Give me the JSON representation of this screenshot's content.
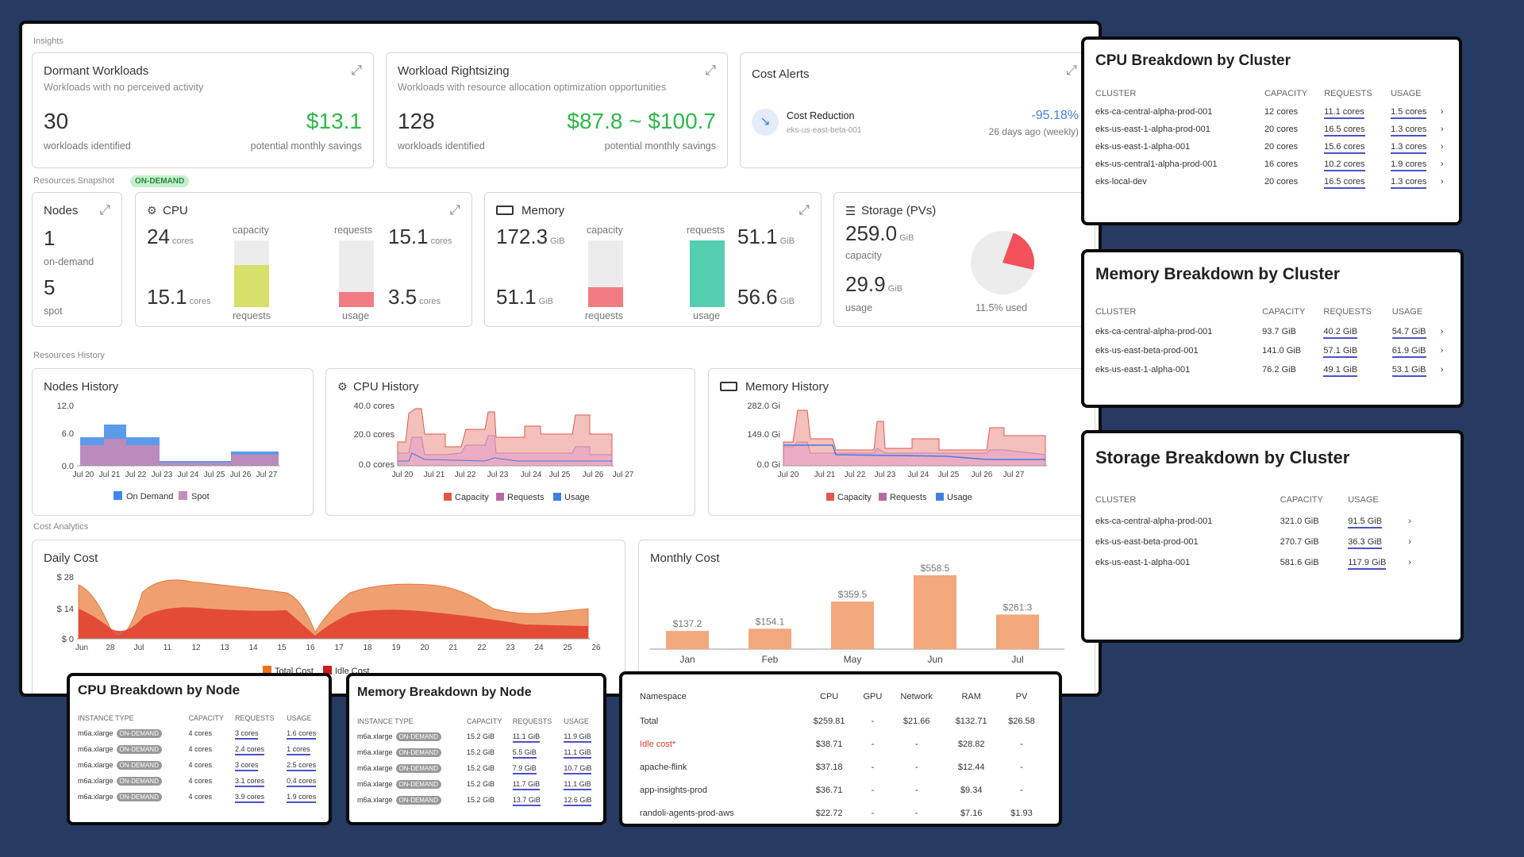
{
  "insights": {
    "label": "Insights",
    "dormant": {
      "title": "Dormant Workloads",
      "subtitle": "Workloads with no perceived activity",
      "count": "30",
      "count_label": "workloads identified",
      "savings": "$13.1",
      "savings_label": "potential monthly savings"
    },
    "rightsizing": {
      "title": "Workload Rightsizing",
      "subtitle": "Workloads with resource allocation optimization opportunities",
      "count": "128",
      "count_label": "workloads identified",
      "savings": "$87.8 ~ $100.7",
      "savings_label": "potential monthly savings"
    },
    "alerts": {
      "title": "Cost Alerts",
      "item_title": "Cost Reduction",
      "item_cluster": "eks-us-east-beta-001",
      "percent": "-95.18%",
      "when": "26 days ago (weekly)"
    }
  },
  "snapshot": {
    "label": "Resources Snapshot",
    "badge": "ON-DEMAND",
    "nodes": {
      "title": "Nodes",
      "ondemand": "1",
      "ondemand_label": "on-demand",
      "spot": "5",
      "spot_label": "spot"
    },
    "cpu": {
      "title": "CPU",
      "cap": "24",
      "cap_unit": "cores",
      "alloc": "15.1",
      "alloc_unit": "cores",
      "cap_label": "capacity",
      "req_label": "requests",
      "requests_top_label": "requests",
      "usage_label": "usage",
      "req": "15.1",
      "req_unit": "cores",
      "use": "3.5",
      "use_unit": "cores",
      "req_fraction": 0.63,
      "use_fraction": 0.23
    },
    "memory": {
      "title": "Memory",
      "cap": "172.3",
      "cap_unit": "GiB",
      "alloc": "51.1",
      "alloc_unit": "GiB",
      "cap_label": "capacity",
      "req_label": "requests",
      "requests_top_label": "requests",
      "usage_label": "usage",
      "req": "51.1",
      "req_unit": "GiB",
      "use": "56.6",
      "use_unit": "GiB",
      "req_fraction": 0.3,
      "use_fraction": 1.0
    },
    "storage": {
      "title": "Storage (PVs)",
      "cap": "259.0",
      "cap_unit": "GiB",
      "cap_label": "capacity",
      "use": "29.9",
      "use_unit": "GiB",
      "use_label": "usage",
      "used_pct_label": "11.5% used",
      "used_fraction": 0.115
    }
  },
  "history": {
    "label": "Resources History",
    "nodes": {
      "title": "Nodes History",
      "yticks": [
        "12.0",
        "6.0",
        "0.0"
      ],
      "xticks": [
        "Jul 20",
        "Jul 21",
        "Jul 22",
        "Jul 23",
        "Jul 24",
        "Jul 25",
        "Jul 26",
        "Jul 27"
      ],
      "legend": [
        "On Demand",
        "Spot"
      ]
    },
    "cpu": {
      "title": "CPU History",
      "yticks": [
        "40.0 cores",
        "20.0 cores",
        "0.0 cores"
      ],
      "xticks": [
        "Jul 20",
        "Jul 21",
        "Jul 22",
        "Jul 23",
        "Jul 24",
        "Jul 25",
        "Jul 26",
        "Jul 27"
      ],
      "legend": [
        "Capacity",
        "Requests",
        "Usage"
      ]
    },
    "memory": {
      "title": "Memory History",
      "yticks": [
        "282.0 Gi",
        "149.0 Gi",
        "0.0 Gi"
      ],
      "xticks": [
        "Jul 20",
        "Jul 21",
        "Jul 22",
        "Jul 23",
        "Jul 24",
        "Jul 25",
        "Jul 26",
        "Jul 27"
      ],
      "legend": [
        "Capacity",
        "Requests",
        "Usage"
      ]
    }
  },
  "cost": {
    "label": "Cost Analytics",
    "daily": {
      "title": "Daily Cost",
      "yticks": [
        "$ 28",
        "$ 14",
        "$ 0"
      ],
      "xticks": [
        "Jun",
        "28",
        "Jul",
        "11",
        "12",
        "13",
        "14",
        "15",
        "16",
        "17",
        "18",
        "19",
        "20",
        "21",
        "22",
        "23",
        "24",
        "25",
        "26"
      ],
      "legend": [
        "Total Cost",
        "Idle Cost"
      ]
    },
    "monthly": {
      "title": "Monthly Cost",
      "bars": [
        {
          "label": "Jan",
          "value": 137.2,
          "text": "$137.2"
        },
        {
          "label": "Feb",
          "value": 154.1,
          "text": "$154.1"
        },
        {
          "label": "May",
          "value": 359.5,
          "text": "$359.5"
        },
        {
          "label": "Jun",
          "value": 558.5,
          "text": "$558.5"
        },
        {
          "label": "Jul",
          "value": 261.3,
          "text": "$261.3"
        }
      ]
    }
  },
  "cpu_cluster": {
    "title": "CPU Breakdown by Cluster",
    "headers": [
      "CLUSTER",
      "CAPACITY",
      "REQUESTS",
      "USAGE"
    ],
    "rows": [
      [
        "eks-ca-central-alpha-prod-001",
        "12 cores",
        "11.1 cores",
        "1.5 cores"
      ],
      [
        "eks-us-east-1-alpha-prod-001",
        "20 cores",
        "16.5 cores",
        "1.3 cores"
      ],
      [
        "eks-us-east-1-alpha-001",
        "20 cores",
        "15.6 cores",
        "1.3 cores"
      ],
      [
        "eks-us-central1-alpha-prod-001",
        "16 cores",
        "10.2 cores",
        "1.9 cores"
      ],
      [
        "eks-local-dev",
        "20 cores",
        "16.5 cores",
        "1.3 cores"
      ]
    ]
  },
  "mem_cluster": {
    "title": "Memory Breakdown by Cluster",
    "headers": [
      "CLUSTER",
      "CAPACITY",
      "REQUESTS",
      "USAGE"
    ],
    "rows": [
      [
        "eks-ca-central-alpha-prod-001",
        "93.7 GiB",
        "40.2 GiB",
        "54.7 GiB"
      ],
      [
        "eks-us-east-beta-prod-001",
        "141.0 GiB",
        "57.1 GiB",
        "61.9 GiB"
      ],
      [
        "eks-us-east-1-alpha-001",
        "76.2 GiB",
        "49.1 GiB",
        "53.1 GiB"
      ]
    ]
  },
  "sto_cluster": {
    "title": "Storage Breakdown by Cluster",
    "headers": [
      "CLUSTER",
      "CAPACITY",
      "USAGE"
    ],
    "rows": [
      [
        "eks-ca-central-alpha-prod-001",
        "321.0 GiB",
        "91.5 GiB"
      ],
      [
        "eks-us-east-beta-prod-001",
        "270.7 GiB",
        "36.3 GiB"
      ],
      [
        "eks-us-east-1-alpha-001",
        "581.6 GiB",
        "117.9 GiB"
      ]
    ]
  },
  "cpu_node": {
    "title": "CPU Breakdown by Node",
    "headers": [
      "INSTANCE TYPE",
      "CAPACITY",
      "REQUESTS",
      "USAGE"
    ],
    "badge": "ON-DEMAND",
    "rows": [
      [
        "m6a.xlarge",
        "4 cores",
        "3 cores",
        "1.6 cores"
      ],
      [
        "m6a.xlarge",
        "4 cores",
        "2.4 cores",
        "1 cores"
      ],
      [
        "m6a.xlarge",
        "4 cores",
        "3 cores",
        "2.5 cores"
      ],
      [
        "m6a.xlarge",
        "4 cores",
        "3.1 cores",
        "0.4 cores"
      ],
      [
        "m6a.xlarge",
        "4 cores",
        "3.9 cores",
        "1.9 cores"
      ]
    ]
  },
  "mem_node": {
    "title": "Memory Breakdown by Node",
    "headers": [
      "INSTANCE TYPE",
      "CAPACITY",
      "REQUESTS",
      "USAGE"
    ],
    "badge": "ON-DEMAND",
    "rows": [
      [
        "m6a.xlarge",
        "15.2 GiB",
        "11.1 GiB",
        "11.9 GiB"
      ],
      [
        "m6a.xlarge",
        "15.2 GiB",
        "5.5 GiB",
        "11.1 GiB"
      ],
      [
        "m6a.xlarge",
        "15.2 GiB",
        "7.9 GiB",
        "10.7 GiB"
      ],
      [
        "m6a.xlarge",
        "15.2 GiB",
        "11.7 GiB",
        "11.1 GiB"
      ],
      [
        "m6a.xlarge",
        "15.2 GiB",
        "13.7 GiB",
        "12.6 GiB"
      ]
    ]
  },
  "ns_table": {
    "headers": [
      "Namespace",
      "CPU",
      "GPU",
      "Network",
      "RAM",
      "PV"
    ],
    "rows": [
      [
        "Total",
        "$259.81",
        "-",
        "$21.66",
        "$132.71",
        "$26.58"
      ],
      [
        "Idle cost*",
        "$38.71",
        "-",
        "-",
        "$28.82",
        "-"
      ],
      [
        "apache-flink",
        "$37.18",
        "-",
        "-",
        "$12.44",
        "-"
      ],
      [
        "app-insights-prod",
        "$36.71",
        "-",
        "-",
        "$9.34",
        "-"
      ],
      [
        "randoli-agents-prod-aws",
        "$22.72",
        "-",
        "-",
        "$7.16",
        "$1.93"
      ]
    ]
  },
  "colors": {
    "green": "#2eb84a",
    "capacity": "#e2574c",
    "requests": "#b66aa0",
    "usage": "#3f7fe0",
    "ondemand": "#3f8ae6",
    "spot": "#c58ab8",
    "total": "#f0a070",
    "idle": "#e03c2c",
    "bar": "#f2a77c"
  }
}
